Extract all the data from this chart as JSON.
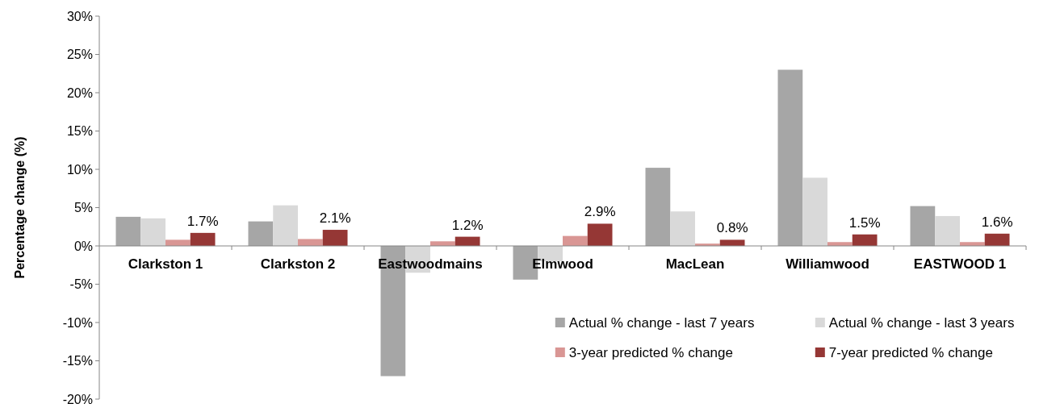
{
  "chart_data": {
    "type": "bar",
    "ylabel": "Percentage change (%)",
    "categories": [
      "Clarkston 1",
      "Clarkston 2",
      "Eastwoodmains",
      "Elmwood",
      "MacLean",
      "Williamwood",
      "EASTWOOD 1"
    ],
    "series": [
      {
        "name": "Actual % change - last 7 years",
        "color": "#a6a6a6",
        "values": [
          3.8,
          3.2,
          -17,
          -4.4,
          10.2,
          23,
          5.2
        ]
      },
      {
        "name": "Actual % change - last 3 years",
        "color": "#d9d9d9",
        "values": [
          3.6,
          5.3,
          -3.5,
          -2,
          4.5,
          8.9,
          3.9
        ]
      },
      {
        "name": "3-year predicted % change",
        "color": "#d99694",
        "values": [
          0.8,
          0.9,
          0.6,
          1.3,
          0.3,
          0.5,
          0.5
        ]
      },
      {
        "name": "7-year predicted % change",
        "color": "#953735",
        "values": [
          1.7,
          2.1,
          1.2,
          2.9,
          0.8,
          1.5,
          1.6
        ],
        "value_labels": [
          "1.7%",
          "2.1%",
          "1.2%",
          "2.9%",
          "0.8%",
          "1.5%",
          "1.6%"
        ]
      }
    ],
    "ylim": [
      -20,
      30
    ],
    "yticks": [
      {
        "value": -20,
        "label": "-20%"
      },
      {
        "value": -15,
        "label": "-15%"
      },
      {
        "value": -10,
        "label": "-10%"
      },
      {
        "value": -5,
        "label": "-5%"
      },
      {
        "value": 0,
        "label": "0%"
      },
      {
        "value": 5,
        "label": "5%"
      },
      {
        "value": 10,
        "label": "10%"
      },
      {
        "value": 15,
        "label": "15%"
      },
      {
        "value": 20,
        "label": "20%"
      },
      {
        "value": 25,
        "label": "25%"
      },
      {
        "value": 30,
        "label": "30%"
      }
    ],
    "grid": false,
    "legend": "bottom right"
  }
}
